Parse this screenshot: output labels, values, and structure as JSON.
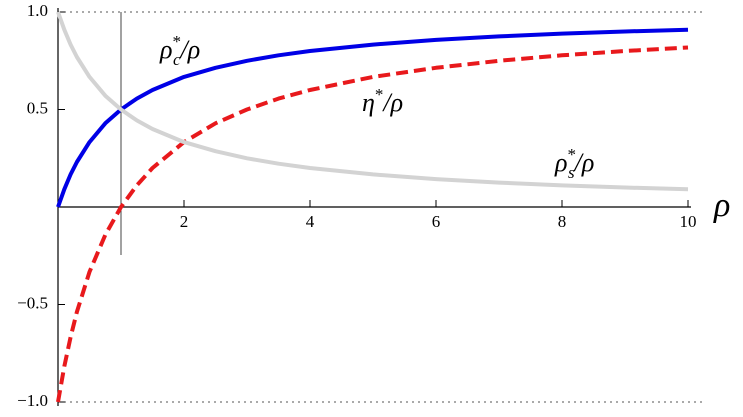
{
  "chart_data": {
    "type": "line",
    "x_label": "ρ",
    "x": [
      0,
      0.1,
      0.2,
      0.3,
      0.5,
      0.75,
      1,
      1.25,
      1.5,
      2,
      2.5,
      3,
      3.5,
      4,
      5,
      6,
      7,
      8,
      9,
      10
    ],
    "series": [
      {
        "name": [
          "ρ",
          "*",
          "c",
          "/ρ"
        ],
        "color": "#0000e6",
        "dash": false,
        "values": [
          0,
          0.091,
          0.167,
          0.231,
          0.333,
          0.429,
          0.5,
          0.556,
          0.6,
          0.667,
          0.714,
          0.75,
          0.778,
          0.8,
          0.833,
          0.857,
          0.875,
          0.889,
          0.9,
          0.909
        ]
      },
      {
        "name": [
          "η",
          "*",
          "",
          "/ρ"
        ],
        "color": "#e8191c",
        "dash": true,
        "values": [
          -1,
          -0.818,
          -0.667,
          -0.538,
          -0.333,
          -0.143,
          0,
          0.111,
          0.2,
          0.333,
          0.429,
          0.5,
          0.556,
          0.6,
          0.667,
          0.714,
          0.75,
          0.778,
          0.8,
          0.818
        ]
      },
      {
        "name": [
          "ρ",
          "*",
          "s",
          "/ρ"
        ],
        "color": "#d3d3d3",
        "dash": false,
        "values": [
          1,
          0.909,
          0.833,
          0.769,
          0.667,
          0.571,
          0.5,
          0.444,
          0.4,
          0.333,
          0.286,
          0.25,
          0.222,
          0.2,
          0.167,
          0.143,
          0.125,
          0.111,
          0.1,
          0.091
        ]
      }
    ],
    "xlim": [
      0,
      10
    ],
    "xticks": [
      2,
      4,
      6,
      8,
      10
    ],
    "ylim": [
      -1,
      1
    ],
    "yticks": [
      {
        "value": 1,
        "label": "1.0"
      },
      {
        "value": 0.5,
        "label": "0.5"
      },
      {
        "value": -0.5,
        "label": "−0.5"
      },
      {
        "value": -1,
        "label": "−1.0"
      }
    ],
    "vline": 1
  }
}
